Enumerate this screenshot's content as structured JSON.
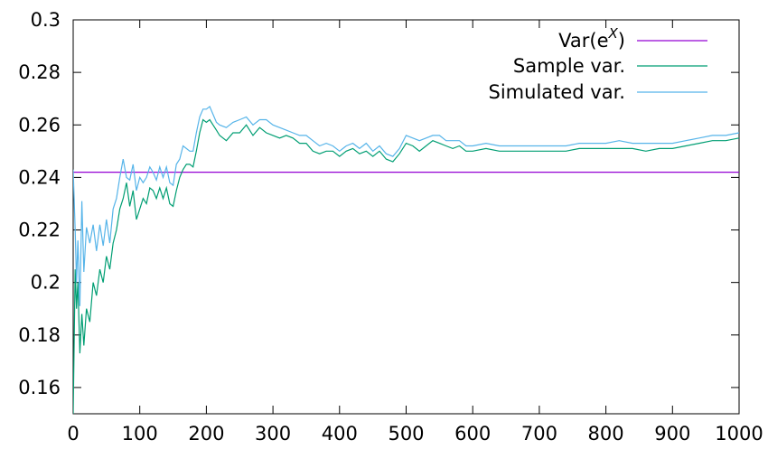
{
  "chart_data": {
    "type": "line",
    "title": "",
    "xlabel": "",
    "ylabel": "",
    "xlim": [
      0,
      1000
    ],
    "ylim": [
      0.15,
      0.3
    ],
    "x_ticks": [
      0,
      100,
      200,
      300,
      400,
      500,
      600,
      700,
      800,
      900,
      1000
    ],
    "y_ticks": [
      0.16,
      0.18,
      0.2,
      0.22,
      0.24,
      0.26,
      0.28,
      0.3
    ],
    "x_tick_labels": [
      "0",
      "100",
      "200",
      "300",
      "400",
      "500",
      "600",
      "700",
      "800",
      "900",
      "1000"
    ],
    "y_tick_labels": [
      "0.16",
      "0.18",
      "0.2",
      "0.22",
      "0.24",
      "0.26",
      "0.28",
      "0.3"
    ],
    "grid": false,
    "legend_position": "top-right",
    "series": [
      {
        "name": "Var(e^X)",
        "label_base": "Var(e",
        "label_sup": "X",
        "label_tail": ")",
        "color": "#9400d3",
        "x": [
          0,
          1000
        ],
        "y": [
          0.242,
          0.242
        ]
      },
      {
        "name": "Sample var.",
        "color": "#009e73",
        "x": [
          0,
          3,
          5,
          7,
          10,
          13,
          16,
          20,
          25,
          30,
          35,
          40,
          45,
          50,
          55,
          60,
          65,
          70,
          75,
          80,
          85,
          90,
          95,
          100,
          105,
          110,
          115,
          120,
          125,
          130,
          135,
          140,
          145,
          150,
          155,
          160,
          165,
          170,
          175,
          180,
          185,
          190,
          195,
          200,
          205,
          210,
          215,
          220,
          230,
          240,
          250,
          260,
          270,
          280,
          290,
          300,
          310,
          320,
          330,
          340,
          350,
          360,
          370,
          380,
          390,
          400,
          410,
          420,
          430,
          440,
          450,
          460,
          470,
          480,
          490,
          500,
          510,
          520,
          530,
          540,
          550,
          560,
          570,
          580,
          590,
          600,
          620,
          640,
          660,
          680,
          700,
          720,
          740,
          760,
          780,
          800,
          820,
          840,
          860,
          880,
          900,
          920,
          940,
          960,
          980,
          1000
        ],
        "y": [
          0.15,
          0.205,
          0.19,
          0.2,
          0.173,
          0.188,
          0.176,
          0.19,
          0.185,
          0.2,
          0.195,
          0.205,
          0.2,
          0.21,
          0.205,
          0.215,
          0.22,
          0.228,
          0.232,
          0.238,
          0.229,
          0.235,
          0.224,
          0.228,
          0.232,
          0.23,
          0.236,
          0.235,
          0.232,
          0.236,
          0.232,
          0.236,
          0.23,
          0.229,
          0.235,
          0.24,
          0.243,
          0.245,
          0.245,
          0.244,
          0.25,
          0.257,
          0.262,
          0.261,
          0.262,
          0.26,
          0.258,
          0.256,
          0.254,
          0.257,
          0.257,
          0.26,
          0.256,
          0.259,
          0.257,
          0.256,
          0.255,
          0.256,
          0.255,
          0.253,
          0.253,
          0.25,
          0.249,
          0.25,
          0.25,
          0.248,
          0.25,
          0.251,
          0.249,
          0.25,
          0.248,
          0.25,
          0.247,
          0.246,
          0.249,
          0.253,
          0.252,
          0.25,
          0.252,
          0.254,
          0.253,
          0.252,
          0.251,
          0.252,
          0.25,
          0.25,
          0.251,
          0.25,
          0.25,
          0.25,
          0.25,
          0.25,
          0.25,
          0.251,
          0.251,
          0.251,
          0.251,
          0.251,
          0.25,
          0.251,
          0.251,
          0.252,
          0.253,
          0.254,
          0.254,
          0.255
        ]
      },
      {
        "name": "Simulated var.",
        "color": "#56b4e9",
        "x": [
          0,
          3,
          5,
          7,
          10,
          13,
          16,
          20,
          25,
          30,
          35,
          40,
          45,
          50,
          55,
          60,
          65,
          70,
          75,
          80,
          85,
          90,
          95,
          100,
          105,
          110,
          115,
          120,
          125,
          130,
          135,
          140,
          145,
          150,
          155,
          160,
          165,
          170,
          175,
          180,
          185,
          190,
          195,
          200,
          205,
          210,
          215,
          220,
          230,
          240,
          250,
          260,
          270,
          280,
          290,
          300,
          310,
          320,
          330,
          340,
          350,
          360,
          370,
          380,
          390,
          400,
          410,
          420,
          430,
          440,
          450,
          460,
          470,
          480,
          490,
          500,
          510,
          520,
          530,
          540,
          550,
          560,
          570,
          580,
          590,
          600,
          620,
          640,
          660,
          680,
          700,
          720,
          740,
          760,
          780,
          800,
          820,
          840,
          860,
          880,
          900,
          920,
          940,
          960,
          980,
          1000
        ],
        "y": [
          0.243,
          0.22,
          0.2,
          0.216,
          0.191,
          0.231,
          0.204,
          0.221,
          0.215,
          0.222,
          0.212,
          0.222,
          0.214,
          0.224,
          0.215,
          0.228,
          0.232,
          0.24,
          0.247,
          0.24,
          0.239,
          0.245,
          0.235,
          0.24,
          0.238,
          0.24,
          0.244,
          0.242,
          0.239,
          0.244,
          0.24,
          0.244,
          0.238,
          0.237,
          0.245,
          0.247,
          0.252,
          0.251,
          0.25,
          0.25,
          0.257,
          0.263,
          0.266,
          0.266,
          0.267,
          0.264,
          0.261,
          0.26,
          0.259,
          0.261,
          0.262,
          0.263,
          0.26,
          0.262,
          0.262,
          0.26,
          0.259,
          0.258,
          0.257,
          0.256,
          0.256,
          0.254,
          0.252,
          0.253,
          0.252,
          0.25,
          0.252,
          0.253,
          0.251,
          0.253,
          0.25,
          0.252,
          0.249,
          0.248,
          0.251,
          0.256,
          0.255,
          0.254,
          0.255,
          0.256,
          0.256,
          0.254,
          0.254,
          0.254,
          0.252,
          0.252,
          0.253,
          0.252,
          0.252,
          0.252,
          0.252,
          0.252,
          0.252,
          0.253,
          0.253,
          0.253,
          0.254,
          0.253,
          0.253,
          0.253,
          0.253,
          0.254,
          0.255,
          0.256,
          0.256,
          0.257
        ]
      }
    ]
  }
}
